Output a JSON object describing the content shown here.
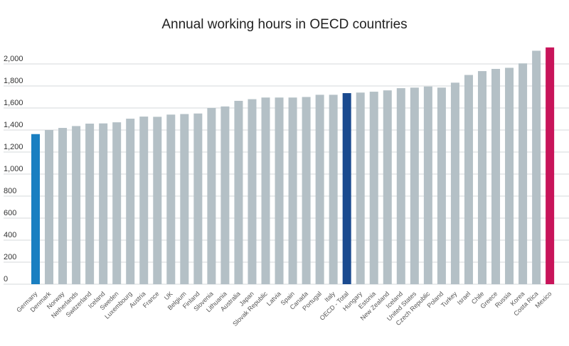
{
  "chart_data": {
    "type": "bar",
    "title": "Annual working hours in OECD countries",
    "categories": [
      "Germany",
      "Denmark",
      "Norway",
      "Netherlands",
      "Switzerland",
      "Iceland",
      "Sweden",
      "Luxembourg",
      "Austria",
      "France",
      "UK",
      "Belgium",
      "Finland",
      "Slovenia",
      "Lithuania",
      "Australia",
      "Japan",
      "Slovak Republic",
      "Latvia",
      "Spain",
      "Canada",
      "Portugal",
      "Italy",
      "OECD - Total",
      "Hungary",
      "Estonia",
      "New Zealand",
      "Iceland",
      "United States",
      "Czech Republic",
      "Poland",
      "Turkey",
      "Israel",
      "Chile",
      "Greece",
      "Russia",
      "Korea",
      "Costa Rica",
      "Mexico"
    ],
    "values": [
      1363,
      1400,
      1419,
      1436,
      1458,
      1460,
      1470,
      1503,
      1522,
      1520,
      1540,
      1545,
      1550,
      1600,
      1614,
      1665,
      1680,
      1695,
      1695,
      1695,
      1700,
      1720,
      1720,
      1735,
      1740,
      1748,
      1760,
      1780,
      1785,
      1795,
      1785,
      1830,
      1900,
      1935,
      1955,
      1965,
      2005,
      2120,
      2150
    ],
    "colors": [
      "#1a7fc1",
      "#b4c0c6",
      "#b4c0c6",
      "#b4c0c6",
      "#b4c0c6",
      "#b4c0c6",
      "#b4c0c6",
      "#b4c0c6",
      "#b4c0c6",
      "#b4c0c6",
      "#b4c0c6",
      "#b4c0c6",
      "#b4c0c6",
      "#b4c0c6",
      "#b4c0c6",
      "#b4c0c6",
      "#b4c0c6",
      "#b4c0c6",
      "#b4c0c6",
      "#b4c0c6",
      "#b4c0c6",
      "#b4c0c6",
      "#b4c0c6",
      "#1a4a8f",
      "#b4c0c6",
      "#b4c0c6",
      "#b4c0c6",
      "#b4c0c6",
      "#b4c0c6",
      "#b4c0c6",
      "#b4c0c6",
      "#b4c0c6",
      "#b4c0c6",
      "#b4c0c6",
      "#b4c0c6",
      "#b4c0c6",
      "#b4c0c6",
      "#b4c0c6",
      "#c8145a"
    ],
    "ylim": [
      0,
      2200
    ],
    "yticks": [
      0,
      200,
      400,
      600,
      800,
      {
        "value": 1000,
        "label": "1,000"
      },
      {
        "value": 1200,
        "label": "1,200"
      },
      {
        "value": 1400,
        "label": "1,400"
      },
      {
        "value": 1600,
        "label": "1,600"
      },
      {
        "value": 1800,
        "label": "1,800"
      },
      {
        "value": 2000,
        "label": "2,000"
      }
    ],
    "grid": true
  }
}
